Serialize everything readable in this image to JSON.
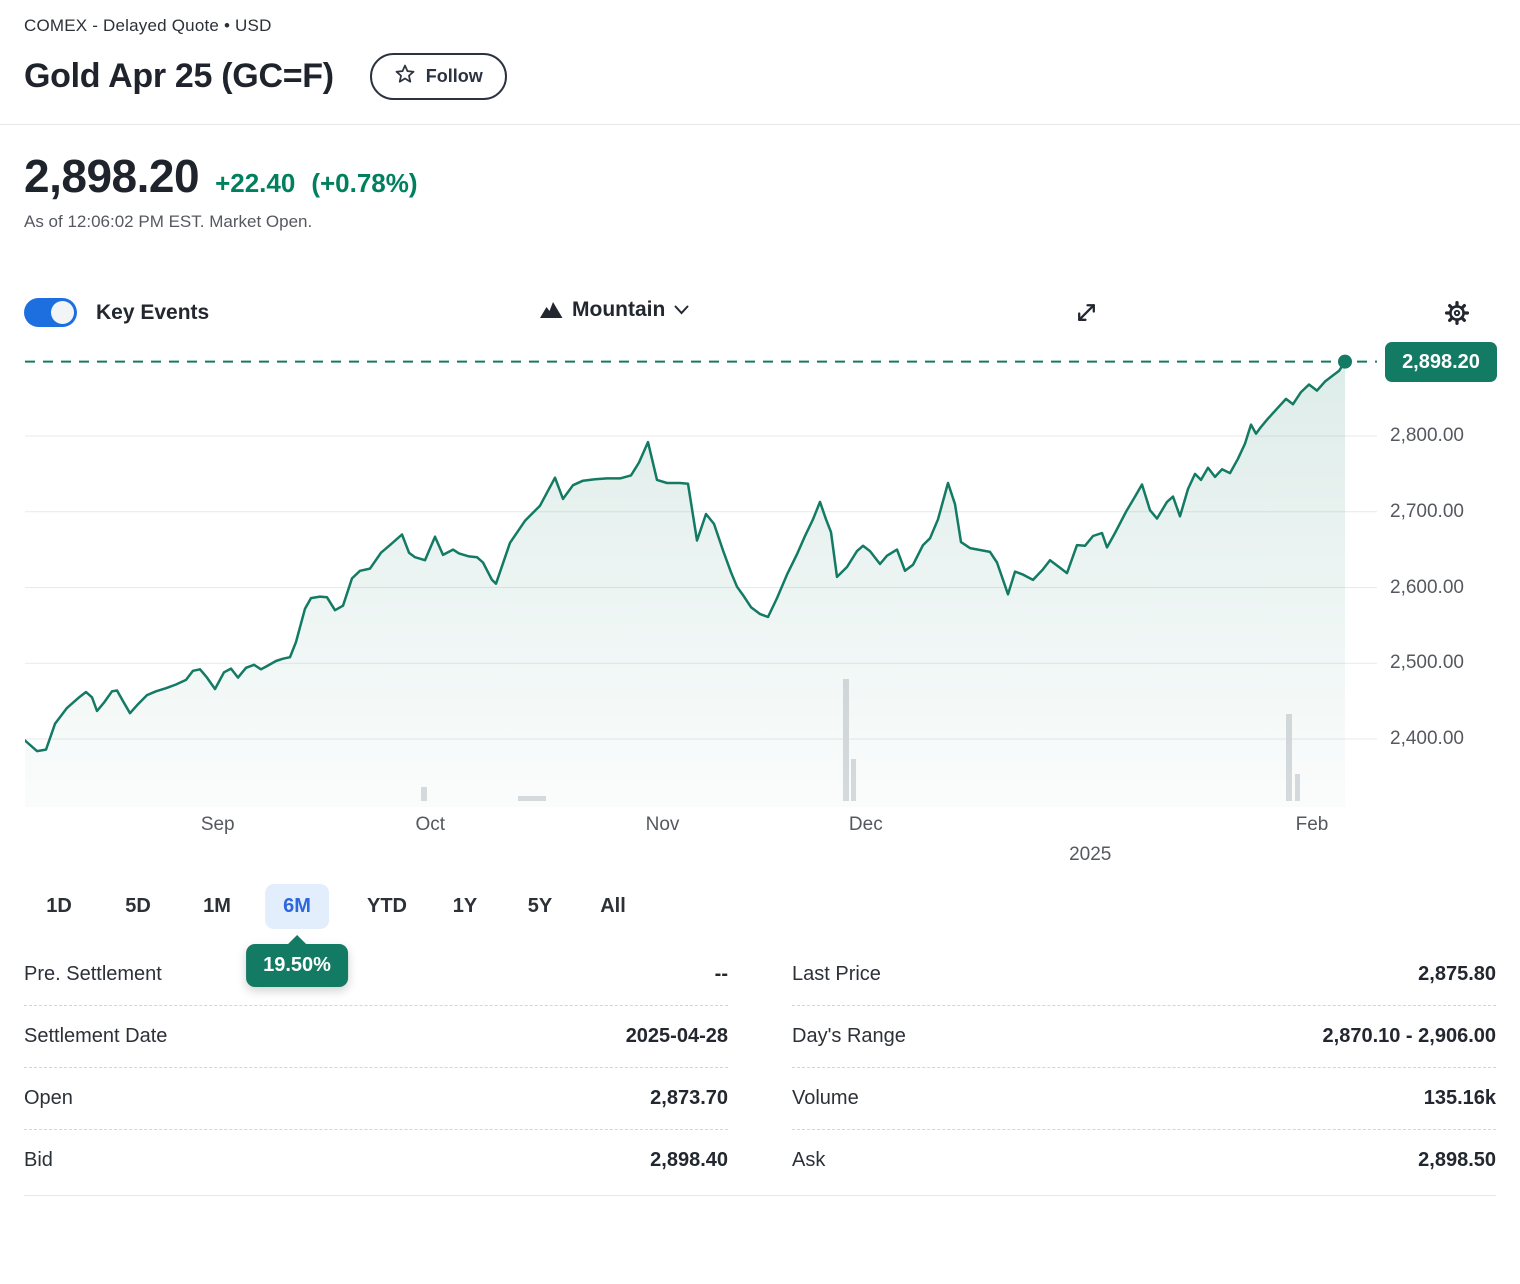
{
  "header": {
    "exchange_line": "COMEX - Delayed Quote • USD",
    "title": "Gold Apr 25 (GC=F)",
    "follow_label": "Follow"
  },
  "quote": {
    "price": "2,898.20",
    "change": "+22.40",
    "change_pct": "(+0.78%)",
    "as_of": "As of 12:06:02 PM EST. Market Open.",
    "up_color": "#00805e"
  },
  "toolbar": {
    "key_events_label": "Key Events",
    "key_events_on": true,
    "chart_type_label": "Mountain"
  },
  "chart_data": {
    "type": "area",
    "title": "Gold Apr 25 (GC=F) 6-month price history",
    "accent_color": "#137a63",
    "grid": true,
    "legend": "none",
    "last_price": 2898.2,
    "last_price_label": "2,898.20",
    "ylim": [
      2310,
      2911
    ],
    "yticks": [
      {
        "value": 2800,
        "label": "2,800.00"
      },
      {
        "value": 2700,
        "label": "2,700.00"
      },
      {
        "value": 2600,
        "label": "2,600.00"
      },
      {
        "value": 2500,
        "label": "2,500.00"
      },
      {
        "value": 2400,
        "label": "2,400.00"
      }
    ],
    "x_ticks": [
      {
        "label": "Sep",
        "pos": 14.6,
        "row": 1
      },
      {
        "label": "Oct",
        "pos": 30.7,
        "row": 1
      },
      {
        "label": "Nov",
        "pos": 48.3,
        "row": 1
      },
      {
        "label": "Dec",
        "pos": 63.7,
        "row": 1
      },
      {
        "label": "2025",
        "pos": 80.7,
        "row": 2
      },
      {
        "label": "Feb",
        "pos": 97.5,
        "row": 1
      }
    ],
    "series": [
      {
        "name": "GC=F",
        "points": [
          [
            0,
            2398
          ],
          [
            12,
            2384
          ],
          [
            21,
            2386
          ],
          [
            30,
            2420
          ],
          [
            42,
            2441
          ],
          [
            55,
            2456
          ],
          [
            61,
            2462
          ],
          [
            67,
            2455
          ],
          [
            72,
            2437
          ],
          [
            79,
            2448
          ],
          [
            87,
            2463
          ],
          [
            92,
            2464
          ],
          [
            98,
            2450
          ],
          [
            105,
            2434
          ],
          [
            113,
            2446
          ],
          [
            122,
            2458
          ],
          [
            131,
            2463
          ],
          [
            141,
            2467
          ],
          [
            151,
            2472
          ],
          [
            161,
            2478
          ],
          [
            168,
            2490
          ],
          [
            175,
            2492
          ],
          [
            182,
            2481
          ],
          [
            190,
            2466
          ],
          [
            199,
            2488
          ],
          [
            206,
            2493
          ],
          [
            213,
            2481
          ],
          [
            221,
            2494
          ],
          [
            229,
            2498
          ],
          [
            236,
            2492
          ],
          [
            243,
            2497
          ],
          [
            251,
            2503
          ],
          [
            258,
            2506
          ],
          [
            265,
            2508
          ],
          [
            271,
            2528
          ],
          [
            280,
            2572
          ],
          [
            286,
            2586
          ],
          [
            295,
            2588
          ],
          [
            302,
            2587
          ],
          [
            310,
            2570
          ],
          [
            318,
            2576
          ],
          [
            327,
            2612
          ],
          [
            335,
            2622
          ],
          [
            345,
            2625
          ],
          [
            356,
            2646
          ],
          [
            365,
            2656
          ],
          [
            377,
            2670
          ],
          [
            384,
            2646
          ],
          [
            390,
            2640
          ],
          [
            400,
            2636
          ],
          [
            410,
            2667
          ],
          [
            418,
            2643
          ],
          [
            428,
            2650
          ],
          [
            434,
            2645
          ],
          [
            444,
            2641
          ],
          [
            452,
            2640
          ],
          [
            458,
            2633
          ],
          [
            467,
            2610
          ],
          [
            471,
            2605
          ],
          [
            485,
            2659
          ],
          [
            500,
            2688
          ],
          [
            515,
            2708
          ],
          [
            530,
            2745
          ],
          [
            538,
            2717
          ],
          [
            548,
            2735
          ],
          [
            558,
            2741
          ],
          [
            570,
            2743
          ],
          [
            582,
            2744
          ],
          [
            595,
            2744
          ],
          [
            606,
            2748
          ],
          [
            614,
            2765
          ],
          [
            623,
            2792
          ],
          [
            632,
            2742
          ],
          [
            642,
            2738
          ],
          [
            655,
            2738
          ],
          [
            663,
            2737
          ],
          [
            672,
            2662
          ],
          [
            681,
            2697
          ],
          [
            689,
            2684
          ],
          [
            698,
            2649
          ],
          [
            706,
            2620
          ],
          [
            712,
            2601
          ],
          [
            718,
            2590
          ],
          [
            726,
            2574
          ],
          [
            735,
            2565
          ],
          [
            743,
            2561
          ],
          [
            752,
            2586
          ],
          [
            762,
            2617
          ],
          [
            772,
            2644
          ],
          [
            780,
            2668
          ],
          [
            788,
            2690
          ],
          [
            795,
            2713
          ],
          [
            801,
            2690
          ],
          [
            806,
            2673
          ],
          [
            812,
            2614
          ],
          [
            822,
            2627
          ],
          [
            832,
            2648
          ],
          [
            838,
            2655
          ],
          [
            845,
            2648
          ],
          [
            855,
            2631
          ],
          [
            862,
            2642
          ],
          [
            872,
            2650
          ],
          [
            880,
            2622
          ],
          [
            888,
            2630
          ],
          [
            898,
            2656
          ],
          [
            905,
            2665
          ],
          [
            913,
            2690
          ],
          [
            923,
            2738
          ],
          [
            930,
            2710
          ],
          [
            936,
            2660
          ],
          [
            945,
            2652
          ],
          [
            953,
            2650
          ],
          [
            965,
            2647
          ],
          [
            972,
            2633
          ],
          [
            983,
            2591
          ],
          [
            990,
            2621
          ],
          [
            998,
            2617
          ],
          [
            1008,
            2610
          ],
          [
            1018,
            2624
          ],
          [
            1025,
            2636
          ],
          [
            1035,
            2626
          ],
          [
            1042,
            2619
          ],
          [
            1052,
            2656
          ],
          [
            1060,
            2655
          ],
          [
            1068,
            2668
          ],
          [
            1077,
            2672
          ],
          [
            1082,
            2653
          ],
          [
            1090,
            2672
          ],
          [
            1101,
            2700
          ],
          [
            1110,
            2720
          ],
          [
            1117,
            2736
          ],
          [
            1125,
            2702
          ],
          [
            1132,
            2691
          ],
          [
            1142,
            2713
          ],
          [
            1148,
            2720
          ],
          [
            1155,
            2694
          ],
          [
            1163,
            2730
          ],
          [
            1170,
            2750
          ],
          [
            1176,
            2742
          ],
          [
            1183,
            2758
          ],
          [
            1190,
            2746
          ],
          [
            1197,
            2756
          ],
          [
            1205,
            2751
          ],
          [
            1213,
            2770
          ],
          [
            1220,
            2790
          ],
          [
            1226,
            2815
          ],
          [
            1231,
            2803
          ],
          [
            1236,
            2812
          ],
          [
            1243,
            2823
          ],
          [
            1252,
            2836
          ],
          [
            1261,
            2849
          ],
          [
            1268,
            2842
          ],
          [
            1276,
            2858
          ],
          [
            1284,
            2868
          ],
          [
            1292,
            2860
          ],
          [
            1300,
            2872
          ],
          [
            1308,
            2880
          ],
          [
            1314,
            2886
          ],
          [
            1320,
            2898.2
          ]
        ]
      }
    ],
    "volume_bars": [
      [
        396,
        6,
        14
      ],
      [
        493,
        28,
        5
      ],
      [
        818,
        6,
        122
      ],
      [
        826,
        5,
        42
      ],
      [
        1261,
        6,
        87
      ],
      [
        1270,
        5,
        27
      ]
    ]
  },
  "ranges": {
    "items": [
      {
        "label": "1D",
        "selected": false
      },
      {
        "label": "5D",
        "selected": false
      },
      {
        "label": "1M",
        "selected": false
      },
      {
        "label": "6M",
        "selected": true
      },
      {
        "label": "YTD",
        "selected": false
      },
      {
        "label": "1Y",
        "selected": false
      },
      {
        "label": "5Y",
        "selected": false
      },
      {
        "label": "All",
        "selected": false
      }
    ],
    "tooltip": "19.50%"
  },
  "stats": {
    "left": [
      {
        "label": "Pre. Settlement",
        "value": "--"
      },
      {
        "label": "Settlement Date",
        "value": "2025-04-28"
      },
      {
        "label": "Open",
        "value": "2,873.70"
      },
      {
        "label": "Bid",
        "value": "2,898.40"
      }
    ],
    "right": [
      {
        "label": "Last Price",
        "value": "2,875.80"
      },
      {
        "label": "Day's Range",
        "value": "2,870.10 - 2,906.00"
      },
      {
        "label": "Volume",
        "value": "135.16k"
      },
      {
        "label": "Ask",
        "value": "2,898.50"
      }
    ]
  }
}
